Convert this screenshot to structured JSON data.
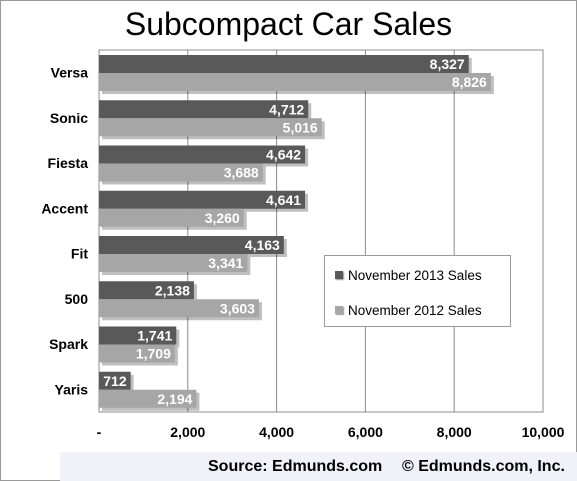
{
  "chart_data": {
    "type": "bar",
    "orientation": "horizontal",
    "title": "Subcompact Car Sales",
    "categories": [
      "Versa",
      "Sonic",
      "Fiesta",
      "Accent",
      "Fit",
      "500",
      "Spark",
      "Yaris"
    ],
    "series": [
      {
        "name": "November 2013 Sales",
        "color": "#595959",
        "values": [
          8327,
          4712,
          4642,
          4641,
          4163,
          2138,
          1741,
          712
        ],
        "labels": [
          "8,327",
          "4,712",
          "4,642",
          "4,641",
          "4,163",
          "2,138",
          "1,741",
          "712"
        ]
      },
      {
        "name": "November 2012 Sales",
        "color": "#a6a6a6",
        "values": [
          8826,
          5016,
          3688,
          3260,
          3341,
          3603,
          1709,
          2194
        ],
        "labels": [
          "8,826",
          "5,016",
          "3,688",
          "3,260",
          "3,341",
          "3,603",
          "1,709",
          "2,194"
        ]
      }
    ],
    "xlim": [
      0,
      10000
    ],
    "x_ticks": [
      0,
      2000,
      4000,
      6000,
      8000,
      10000
    ],
    "x_tick_labels": [
      "-",
      "2,000",
      "4,000",
      "6,000",
      "8,000",
      "10,000"
    ],
    "grid": "vertical",
    "legend_position": "right"
  },
  "footer": {
    "source": "Source: Edmunds.com",
    "copyright": "© Edmunds.com, Inc."
  }
}
